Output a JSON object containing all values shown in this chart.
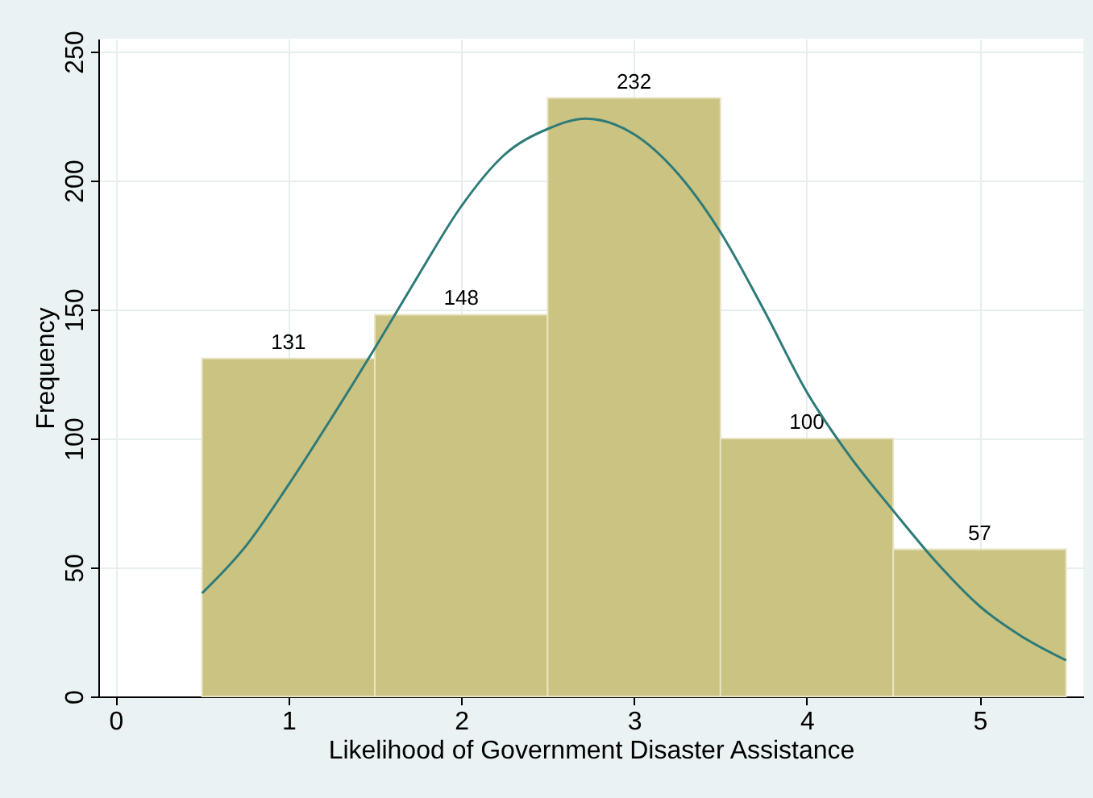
{
  "chart_data": {
    "type": "histogram",
    "xlabel": "Likelihood of Government Disaster Assistance",
    "ylabel": "Frequency",
    "bins": [
      0.5,
      1.5,
      2.5,
      3.5,
      4.5,
      5.5
    ],
    "values": [
      131,
      148,
      232,
      100,
      57
    ],
    "color": "#cbc382",
    "value_labels": [
      "131",
      "148",
      "232",
      "100",
      "57"
    ],
    "series": [
      {
        "type": "line",
        "color": "#2e7b78",
        "x": [
          0.5,
          0.75,
          1,
          1.25,
          1.5,
          1.75,
          2,
          2.25,
          2.5,
          2.72,
          3,
          3.25,
          3.5,
          3.75,
          4,
          4.25,
          4.5,
          4.75,
          5,
          5.25,
          5.5
        ],
        "values": [
          40,
          58,
          82,
          108,
          135,
          163,
          190,
          210,
          220,
          224,
          218,
          203,
          180,
          150,
          118,
          93,
          72,
          52,
          35,
          23,
          14
        ]
      }
    ],
    "xlim": [
      -0.1,
      5.6
    ],
    "xticks": [
      0,
      1,
      2,
      3,
      4,
      5
    ],
    "ylim": [
      0,
      255
    ],
    "yticks": [
      0,
      50,
      100,
      150,
      200,
      250
    ],
    "grid": true
  }
}
